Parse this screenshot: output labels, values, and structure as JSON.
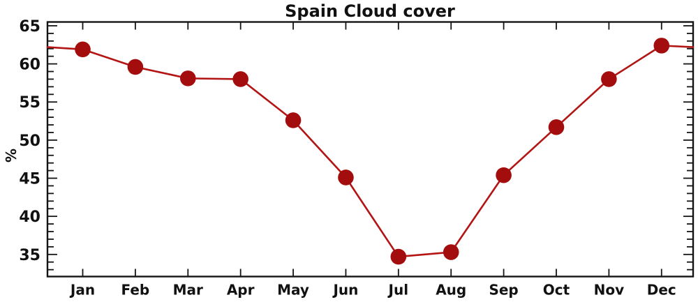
{
  "chart_data": {
    "type": "line",
    "title": "Spain Cloud cover",
    "xlabel": "",
    "ylabel": "%",
    "categories": [
      "Jan",
      "Feb",
      "Mar",
      "Apr",
      "May",
      "Jun",
      "Jul",
      "Aug",
      "Sep",
      "Oct",
      "Nov",
      "Dec"
    ],
    "values": [
      61.9,
      59.6,
      58.1,
      58.0,
      52.6,
      45.1,
      34.7,
      35.3,
      45.4,
      51.7,
      58.0,
      62.4
    ],
    "edge_continuation": {
      "left_value": 62.2,
      "right_value": 62.2
    },
    "xlim": [
      0.33,
      12.6
    ],
    "ylim": [
      32.1,
      65.5
    ],
    "yticks_major": [
      35,
      40,
      45,
      50,
      55,
      60,
      65
    ],
    "ytick_minor_step": 1,
    "grid": false,
    "legend": "none",
    "line_color": "#b31414",
    "marker_color": "#a30d0d",
    "axis_color": "#141414",
    "text_color": "#111111"
  }
}
